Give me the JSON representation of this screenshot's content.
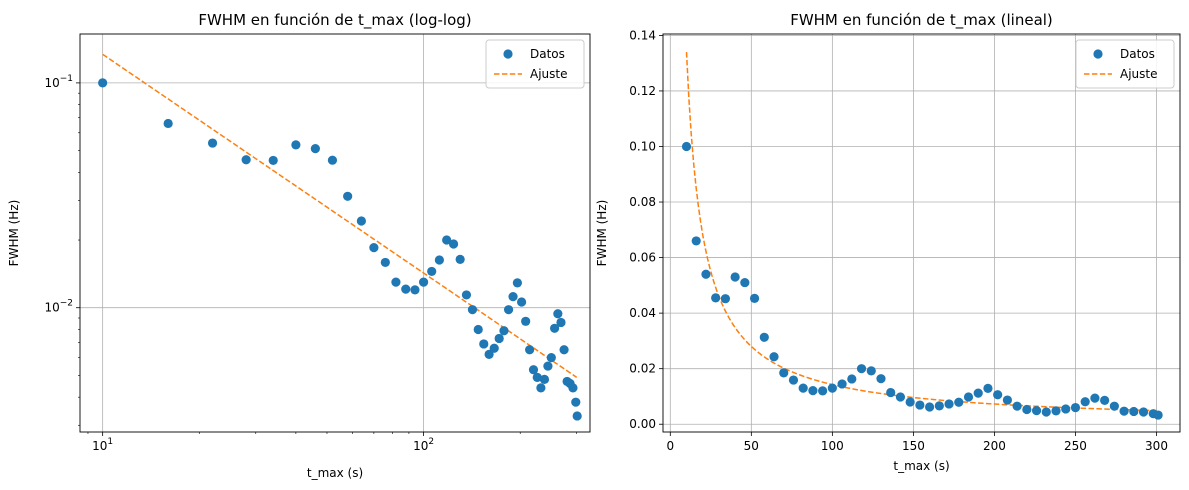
{
  "chart_data": [
    {
      "type": "scatter",
      "title": "FWHM en función de t_max (log-log)",
      "xlabel": "t_max (s)",
      "ylabel": "FWHM (Hz)",
      "xscale": "log",
      "yscale": "log",
      "xlim": [
        8.5,
        330
      ],
      "ylim": [
        0.0028,
        0.165
      ],
      "grid": true,
      "legend": "top-right",
      "xticks": [
        {
          "value": 10,
          "base": "10",
          "exp": "1"
        },
        {
          "value": 100,
          "base": "10",
          "exp": "2"
        }
      ],
      "yticks": [
        {
          "value": 0.01,
          "base": "10",
          "exp": "−2"
        },
        {
          "value": 0.1,
          "base": "10",
          "exp": "−1"
        }
      ]
    },
    {
      "type": "scatter",
      "title": "FWHM en función de t_max (lineal)",
      "xlabel": "t_max (s)",
      "ylabel": "FWHM (Hz)",
      "xscale": "linear",
      "yscale": "linear",
      "xlim": [
        -4.5,
        314.5
      ],
      "ylim": [
        -0.0028,
        0.1405
      ],
      "grid": true,
      "legend": "top-right",
      "xticks": [
        0,
        50,
        100,
        150,
        200,
        250,
        300
      ],
      "xtick_labels": [
        "0",
        "50",
        "100",
        "150",
        "200",
        "250",
        "300"
      ],
      "yticks": [
        0,
        0.02,
        0.04,
        0.06,
        0.08,
        0.1,
        0.12,
        0.14
      ],
      "ytick_labels": [
        "0.00",
        "0.02",
        "0.04",
        "0.06",
        "0.08",
        "0.10",
        "0.12",
        "0.14"
      ]
    }
  ],
  "series": {
    "datos": {
      "name": "Datos",
      "color": "#1f77b4",
      "x": [
        10,
        16,
        22,
        28,
        34,
        40,
        46,
        52,
        58,
        64,
        70,
        76,
        82,
        88,
        94,
        100,
        106,
        112,
        118,
        124,
        130,
        136,
        142,
        148,
        154,
        160,
        166,
        172,
        178,
        184,
        190,
        196,
        202,
        208,
        214,
        220,
        226,
        232,
        238,
        244,
        250,
        256,
        262,
        268,
        274,
        280,
        286,
        292,
        298,
        301
      ],
      "y": [
        0.1,
        0.066,
        0.054,
        0.0455,
        0.0452,
        0.053,
        0.051,
        0.0453,
        0.0313,
        0.0243,
        0.0185,
        0.0159,
        0.013,
        0.0121,
        0.012,
        0.013,
        0.0145,
        0.0163,
        0.02,
        0.0192,
        0.0164,
        0.0114,
        0.0098,
        0.008,
        0.0069,
        0.0062,
        0.0066,
        0.0073,
        0.0079,
        0.0098,
        0.0112,
        0.0129,
        0.0106,
        0.0087,
        0.0065,
        0.0053,
        0.0049,
        0.0044,
        0.0048,
        0.0055,
        0.006,
        0.0081,
        0.0094,
        0.0086,
        0.0065,
        0.0047,
        0.0046,
        0.0044,
        0.0038,
        0.0033
      ]
    },
    "ajuste": {
      "name": "Ajuste",
      "color": "#ff7f0e",
      "model": "power-law",
      "x_range": [
        10,
        300
      ],
      "y_at_xmin": 0.134,
      "y_at_xmax": 0.0049
    }
  }
}
